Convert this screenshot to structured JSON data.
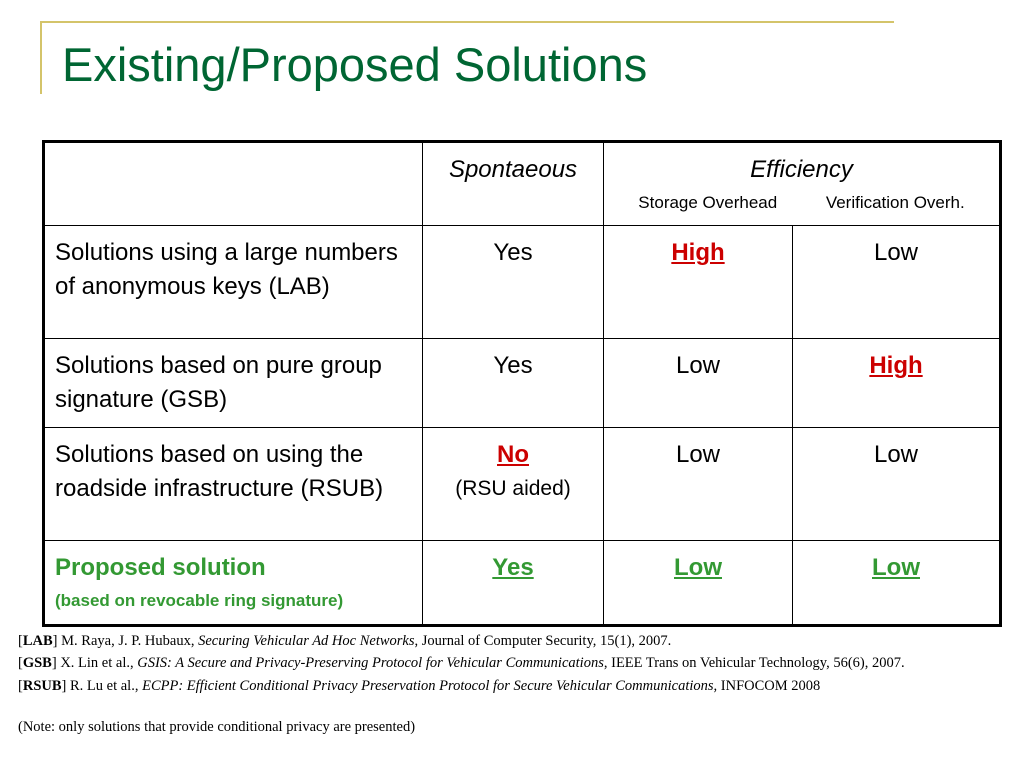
{
  "title": "Existing/Proposed Solutions",
  "table": {
    "header": {
      "spontaneous": "Spontaeous",
      "efficiency": "Efficiency",
      "storage": "Storage Overhead",
      "verification": "Verification Overh."
    },
    "rows": [
      {
        "label": "Solutions using a large numbers of anonymous keys (LAB)",
        "spontaneous": "Yes",
        "storage": "High",
        "verification": "Low"
      },
      {
        "label": "Solutions based on pure group signature (GSB)",
        "spontaneous": "Yes",
        "storage": "Low",
        "verification": "High"
      },
      {
        "label": "Solutions based on using the roadside infrastructure (RSUB)",
        "spontaneous": "No",
        "spontaneous_note": "(RSU aided)",
        "storage": "Low",
        "verification": "Low"
      },
      {
        "label": "Proposed solution",
        "label_note": "(based on revocable ring signature)",
        "spontaneous": "Yes",
        "storage": "Low",
        "verification": "Low"
      }
    ]
  },
  "references": [
    {
      "tag": "LAB",
      "authors": " M. Raya, J. P. Hubaux, ",
      "title": "Securing Vehicular Ad Hoc Networks",
      "venue": ", Journal of Computer Security, 15(1), 2007."
    },
    {
      "tag": "GSB",
      "authors": " X. Lin et al., ",
      "title": "GSIS: A Secure and Privacy-Preserving Protocol for Vehicular Communications",
      "venue": ", IEEE Trans  on Vehicular Technology, 56(6), 2007."
    },
    {
      "tag": "RSUB",
      "authors": " R. Lu et al., ",
      "title": "ECPP: Efficient Conditional Privacy Preservation Protocol for Secure Vehicular Communications,",
      "venue": " INFOCOM 2008"
    }
  ],
  "note": "(Note: only solutions that provide conditional privacy are presented)",
  "colors": {
    "title": "#006633",
    "accent_line": "#d4c46a",
    "emphasis_red": "#cc0000",
    "emphasis_green": "#339933"
  }
}
